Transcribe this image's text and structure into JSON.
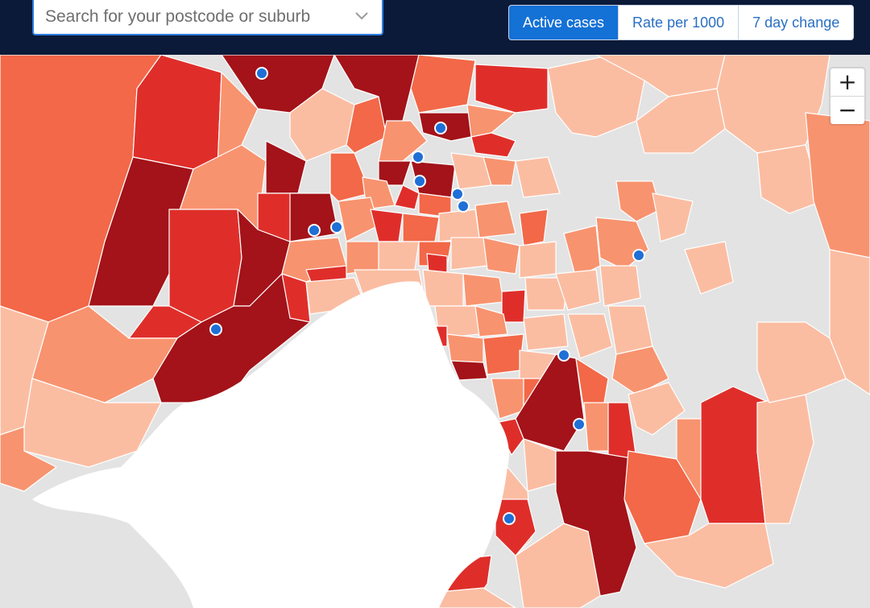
{
  "search": {
    "placeholder": "Search for your postcode or suburb",
    "icon": "chevron-down-icon"
  },
  "view_tabs": [
    {
      "label": "Active cases",
      "active": true
    },
    {
      "label": "Rate per 1000",
      "active": false
    },
    {
      "label": "7 day change",
      "active": false
    }
  ],
  "zoom": {
    "in_label": "+",
    "out_label": "−"
  },
  "colors": {
    "header_bg": "#0b1a38",
    "accent": "#1471d6",
    "no_data": "#e3e3e3",
    "water": "#ffffff",
    "level_1": "#fbbda2",
    "level_2": "#f8936f",
    "level_3": "#f26848",
    "level_4": "#df2e2a",
    "level_5": "#a31319",
    "marker": "#1e6fd6"
  }
}
